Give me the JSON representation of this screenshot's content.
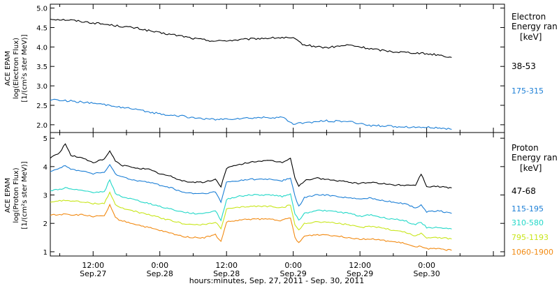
{
  "colors": {
    "e1": "#000000",
    "e2": "#1c7fd6",
    "p1": "#000000",
    "p2": "#1c7fd6",
    "p3": "#22d8c8",
    "p4": "#c8e61a",
    "p5": "#f28a12",
    "axis": "#000000"
  },
  "xlabel": "hours:minutes, Sep. 27, 2011 - Sep. 30, 2011",
  "xticks": [
    {
      "t": 12,
      "time": "12:00",
      "date": "Sep.27"
    },
    {
      "t": 24,
      "time": "0:00",
      "date": "Sep.28"
    },
    {
      "t": 36,
      "time": "12:00",
      "date": "Sep.28"
    },
    {
      "t": 48,
      "time": "0:00",
      "date": "Sep.29"
    },
    {
      "t": 60,
      "time": "12:00",
      "date": "Sep.29"
    },
    {
      "t": 72,
      "time": "0:00",
      "date": "Sep.30"
    }
  ],
  "electron_panel": {
    "ylabel_1": "ACE EPAM",
    "ylabel_2": "log(Electron Flux)",
    "ylabel_3": "[1/(cm²s ster MeV)]",
    "legend_title_1": "Electron",
    "legend_title_2": "Energy ran",
    "legend_units": "[keV]",
    "series_labels": [
      "38-53",
      "175-315"
    ]
  },
  "proton_panel": {
    "ylabel_1": "ACE EPAM",
    "ylabel_2": "log(Proton Flux)",
    "ylabel_3": "[1/(cm²s ster MeV)]",
    "legend_title_1": "Proton",
    "legend_title_2": "Energy ran",
    "legend_units": "[keV]",
    "series_labels": [
      "47-68",
      "115-195",
      "310-580",
      "795-1193",
      "1060-1900"
    ]
  },
  "chart_data": [
    {
      "type": "line",
      "xlabel": "hours:minutes, Sep. 27, 2011 - Sep. 30, 2011",
      "ylabel": "log(Electron Flux) [1/(cm²s ster MeV)]",
      "x_unit": "hours since 0:00 Sep.27",
      "xlim": [
        4.3,
        86
      ],
      "ylim": [
        1.8,
        5.1
      ],
      "yticks": [
        2.0,
        2.5,
        3.0,
        3.5,
        4.0,
        4.5,
        5.0
      ],
      "x": [
        4.3,
        8,
        12,
        16,
        20,
        24,
        28,
        30,
        34,
        38,
        42,
        46,
        48,
        50,
        54,
        58,
        62,
        66,
        70,
        74,
        76.5
      ],
      "series": [
        {
          "name": "38-53",
          "color": "#000000",
          "values": [
            4.72,
            4.69,
            4.62,
            4.55,
            4.48,
            4.36,
            4.28,
            4.22,
            4.15,
            4.18,
            4.22,
            4.24,
            4.22,
            4.05,
            3.98,
            4.05,
            3.95,
            3.88,
            3.85,
            3.8,
            3.73
          ]
        },
        {
          "name": "175-315",
          "color": "#1c7fd6",
          "values": [
            2.65,
            2.61,
            2.55,
            2.48,
            2.38,
            2.28,
            2.22,
            2.18,
            2.13,
            2.16,
            2.18,
            2.19,
            2.02,
            2.05,
            2.1,
            2.08,
            1.98,
            1.96,
            1.94,
            1.92,
            1.88
          ]
        }
      ]
    },
    {
      "type": "line",
      "ylabel": "log(Proton Flux) [1/(cm²s ster MeV)]",
      "xlim": [
        4.3,
        86
      ],
      "ylim": [
        0.85,
        5.2
      ],
      "yticks": [
        1,
        2,
        3,
        4,
        5
      ],
      "x": [
        4.3,
        6,
        7,
        8,
        10,
        12,
        14,
        15,
        16,
        17,
        20,
        22,
        24,
        26,
        28,
        30,
        32,
        34,
        35,
        36,
        38,
        40,
        42,
        44,
        46,
        47.5,
        48.3,
        49,
        50,
        52,
        54,
        56,
        58,
        60,
        62,
        64,
        66,
        68,
        70,
        71,
        72,
        74,
        76.5
      ],
      "series": [
        {
          "name": "47-68",
          "color": "#000000",
          "values": [
            4.3,
            4.5,
            4.8,
            4.4,
            4.3,
            4.15,
            4.25,
            4.55,
            4.2,
            4.05,
            3.95,
            3.9,
            3.75,
            3.65,
            3.5,
            3.45,
            3.45,
            3.55,
            3.3,
            3.95,
            4.05,
            4.15,
            4.2,
            4.2,
            4.15,
            4.3,
            3.6,
            3.3,
            3.5,
            3.6,
            3.55,
            3.5,
            3.45,
            3.4,
            3.45,
            3.4,
            3.35,
            3.35,
            3.35,
            3.75,
            3.3,
            3.3,
            3.25
          ]
        },
        {
          "name": "115-195",
          "color": "#1c7fd6",
          "values": [
            3.85,
            3.95,
            4.05,
            3.9,
            3.85,
            3.75,
            3.8,
            4.05,
            3.75,
            3.65,
            3.5,
            3.45,
            3.35,
            3.25,
            3.1,
            3.05,
            3.05,
            3.1,
            2.75,
            3.45,
            3.5,
            3.55,
            3.55,
            3.55,
            3.5,
            3.6,
            2.95,
            2.6,
            2.9,
            3.0,
            3.0,
            2.95,
            2.9,
            2.85,
            2.9,
            2.8,
            2.75,
            2.7,
            2.55,
            2.65,
            2.4,
            2.45,
            2.35
          ]
        },
        {
          "name": "310-580",
          "color": "#22d8c8",
          "values": [
            3.15,
            3.2,
            3.25,
            3.2,
            3.15,
            3.1,
            3.1,
            3.55,
            3.05,
            2.95,
            2.8,
            2.7,
            2.6,
            2.5,
            2.4,
            2.35,
            2.35,
            2.45,
            2.1,
            2.85,
            2.95,
            3.0,
            3.0,
            3.0,
            2.95,
            3.05,
            2.35,
            2.1,
            2.35,
            2.45,
            2.45,
            2.4,
            2.35,
            2.25,
            2.3,
            2.2,
            2.15,
            2.1,
            1.95,
            2.05,
            1.85,
            1.85,
            1.8
          ]
        },
        {
          "name": "795-1193",
          "color": "#c8e61a",
          "values": [
            2.75,
            2.8,
            2.8,
            2.8,
            2.75,
            2.7,
            2.7,
            3.1,
            2.65,
            2.55,
            2.4,
            2.3,
            2.2,
            2.1,
            2.0,
            1.95,
            1.95,
            2.05,
            1.8,
            2.5,
            2.55,
            2.6,
            2.6,
            2.6,
            2.55,
            2.65,
            1.95,
            1.75,
            2.0,
            2.05,
            2.05,
            2.0,
            1.95,
            1.85,
            1.9,
            1.85,
            1.75,
            1.7,
            1.55,
            1.65,
            1.5,
            1.5,
            1.45
          ]
        },
        {
          "name": "1060-1900",
          "color": "#f28a12",
          "values": [
            2.3,
            2.3,
            2.35,
            2.3,
            2.3,
            2.25,
            2.25,
            2.65,
            2.2,
            2.1,
            1.95,
            1.85,
            1.75,
            1.65,
            1.55,
            1.5,
            1.5,
            1.6,
            1.35,
            2.05,
            2.1,
            2.15,
            2.15,
            2.15,
            2.1,
            2.2,
            1.5,
            1.3,
            1.55,
            1.6,
            1.6,
            1.55,
            1.5,
            1.45,
            1.45,
            1.4,
            1.35,
            1.3,
            1.15,
            1.2,
            1.1,
            1.1,
            1.05
          ]
        }
      ]
    }
  ]
}
